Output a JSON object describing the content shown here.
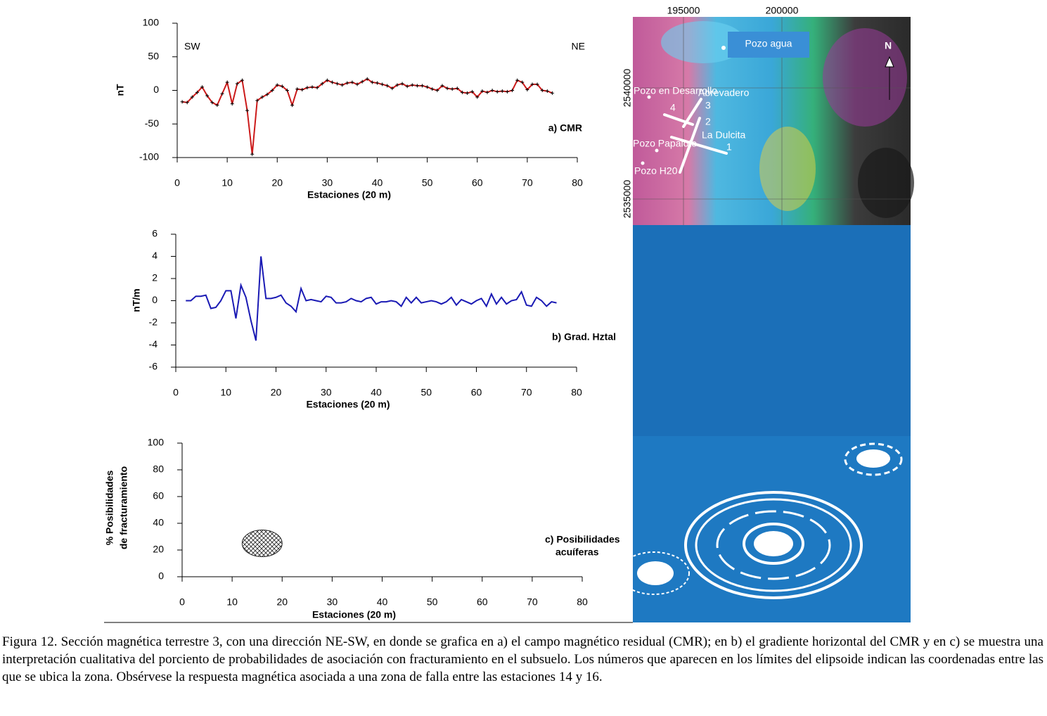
{
  "chart_data": [
    {
      "type": "line",
      "color": "#cc1a1a",
      "markers": true,
      "annotations": [
        "SW",
        "NE",
        "a) CMR"
      ],
      "xlabel": "Estaciones  (20 m)",
      "ylabel": [
        "nT"
      ],
      "x": [
        1,
        2,
        3,
        4,
        5,
        6,
        7,
        8,
        9,
        10,
        11,
        12,
        13,
        14,
        15,
        16,
        17,
        18,
        19,
        20,
        21,
        22,
        23,
        24,
        25,
        26,
        27,
        28,
        29,
        30,
        31,
        32,
        33,
        34,
        35,
        36,
        37,
        38,
        39,
        40,
        41,
        42,
        43,
        44,
        45,
        46,
        47,
        48,
        49,
        50,
        51,
        52,
        53,
        54,
        55,
        56,
        57,
        58,
        59,
        60,
        61,
        62,
        63,
        64,
        65,
        66,
        67,
        68,
        69,
        70,
        71,
        72,
        73,
        74,
        75
      ],
      "values": [
        -17,
        -18,
        -10,
        -3,
        5,
        -8,
        -18,
        -22,
        -5,
        12,
        -20,
        10,
        15,
        -30,
        -95,
        -15,
        -10,
        -6,
        0,
        8,
        6,
        0,
        -22,
        2,
        1,
        4,
        5,
        4,
        10,
        15,
        12,
        10,
        8,
        11,
        12,
        9,
        13,
        17,
        12,
        11,
        9,
        7,
        3,
        8,
        10,
        6,
        8,
        7,
        7,
        5,
        2,
        0,
        7,
        3,
        2,
        3,
        -3,
        -4,
        -2,
        -10,
        -1,
        -3,
        0,
        -2,
        -1,
        -2,
        0,
        15,
        12,
        1,
        9,
        9,
        0,
        -1,
        -4
      ],
      "xlim": [
        0,
        80
      ],
      "xticks": [
        0,
        10,
        20,
        30,
        40,
        50,
        60,
        70,
        80
      ],
      "ylim": [
        -100,
        100
      ],
      "yticks": [
        -100,
        -50,
        0,
        50,
        100
      ]
    },
    {
      "type": "line",
      "color": "#1a1ab4",
      "markers": false,
      "annotations": [
        "b) Grad. Hztal"
      ],
      "xlabel": "Estaciones  (20 m)",
      "ylabel": [
        "nT/m"
      ],
      "x": [
        2,
        3,
        4,
        5,
        6,
        7,
        8,
        9,
        10,
        11,
        12,
        13,
        14,
        15,
        16,
        17,
        18,
        19,
        20,
        21,
        22,
        23,
        24,
        25,
        26,
        27,
        28,
        29,
        30,
        31,
        32,
        33,
        34,
        35,
        36,
        37,
        38,
        39,
        40,
        41,
        42,
        43,
        44,
        45,
        46,
        47,
        48,
        49,
        50,
        51,
        52,
        53,
        54,
        55,
        56,
        57,
        58,
        59,
        60,
        61,
        62,
        63,
        64,
        65,
        66,
        67,
        68,
        69,
        70,
        71,
        72,
        73,
        74,
        75,
        76
      ],
      "values": [
        0,
        0,
        0.4,
        0.4,
        0.5,
        -0.7,
        -0.6,
        0,
        0.9,
        0.9,
        -1.6,
        1.4,
        0.3,
        -1.8,
        -3.6,
        4,
        0.2,
        0.2,
        0.3,
        0.5,
        -0.2,
        -0.5,
        -1,
        1.1,
        0,
        0.1,
        0,
        -0.1,
        0.4,
        0.3,
        -0.2,
        -0.2,
        -0.1,
        0.2,
        0,
        -0.1,
        0.2,
        0.3,
        -0.3,
        -0.1,
        -0.1,
        0,
        -0.1,
        -0.5,
        0.3,
        -0.2,
        0.3,
        -0.2,
        -0.1,
        0,
        -0.1,
        -0.3,
        -0.1,
        0.3,
        -0.4,
        0.1,
        -0.1,
        -0.3,
        0,
        0.2,
        -0.5,
        0.6,
        -0.3,
        0.3,
        -0.3,
        0,
        0.1,
        0.8,
        -0.4,
        -0.5,
        0.3,
        0,
        -0.5,
        -0.1,
        -0.2
      ],
      "xlim": [
        0,
        80
      ],
      "xticks": [
        0,
        10,
        20,
        30,
        40,
        50,
        60,
        70,
        80
      ],
      "ylim": [
        -6,
        6
      ],
      "yticks": [
        -6,
        -4,
        -2,
        0,
        2,
        4,
        6
      ]
    },
    {
      "type": "ellipse",
      "color": "#222222",
      "annotations": [
        "c) Posibilidades",
        "acuíferas"
      ],
      "xlabel": "Estaciones (20 m)",
      "ylabel": [
        "% Posibilidades",
        "de fracturamiento"
      ],
      "ellipse": {
        "x": [
          12,
          20
        ],
        "y": [
          15,
          35
        ]
      },
      "xlim": [
        0,
        80
      ],
      "xticks": [
        0,
        10,
        20,
        30,
        40,
        50,
        60,
        70,
        80
      ],
      "ylim": [
        0,
        100
      ],
      "yticks": [
        0,
        20,
        40,
        60,
        80,
        100
      ]
    }
  ],
  "map": {
    "easting": [
      "195000",
      "200000"
    ],
    "northing": [
      "2540000",
      "2535000"
    ],
    "labels": [
      "Pozo  agua",
      "N",
      "Pozo en Desarrollo",
      "Abrevadero",
      "4",
      "3",
      "2",
      "1",
      "La Dulcita",
      "Pozo Papalote",
      "Pozo H20"
    ]
  },
  "caption": "Figura 12. Sección magnética terrestre 3, con una dirección NE-SW, en donde se grafica en a) el campo magnético residual (CMR); en b) el gradiente horizontal del CMR y en c) se muestra una interpretación cualitativa del porciento de probabilidades de asociación con fracturamiento en el subsuelo. Los números que aparecen en los límites del elipsoide indican las coordenadas entre las que se ubica la zona. Obsérvese la respuesta magnética asociada a una zona de falla entre las estaciones 14 y 16."
}
